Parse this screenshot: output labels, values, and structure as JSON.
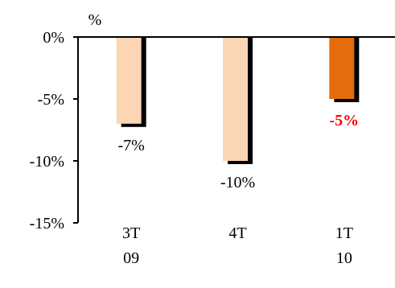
{
  "chart_data": {
    "type": "bar",
    "title": "",
    "xlabel": "",
    "ylabel": "%",
    "categories": [
      [
        "3T",
        "09"
      ],
      [
        "4T",
        ""
      ],
      [
        "1T",
        "10"
      ]
    ],
    "values": [
      -7,
      -10,
      -5
    ],
    "value_labels": [
      "-7%",
      "-10%",
      "-5%"
    ],
    "highlight_index": 2,
    "ylim": [
      -15,
      0
    ],
    "yticks": [
      0,
      -5,
      -10,
      -15
    ],
    "ytick_labels": [
      "0%",
      "-5%",
      "-10%",
      "-15%"
    ],
    "grid": false,
    "legend": "none",
    "colors": {
      "bar": "#FCD5B5",
      "highlight_bar": "#E46C0A",
      "shadow": "#000000",
      "axis": "#000000",
      "label": "#000000",
      "highlight_label": "#FF0000"
    }
  }
}
